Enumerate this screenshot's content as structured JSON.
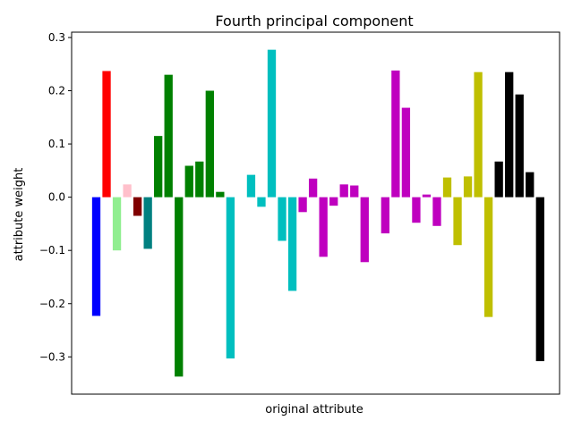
{
  "chart_data": {
    "type": "bar",
    "title": "Fourth principal component",
    "xlabel": "original attribute",
    "ylabel": "attribute weight",
    "ylim": [
      -0.37,
      0.31
    ],
    "yticks": [
      {
        "value": 0.3,
        "label": "0.3"
      },
      {
        "value": 0.2,
        "label": "0.2"
      },
      {
        "value": 0.1,
        "label": "0.1"
      },
      {
        "value": 0.0,
        "label": "0.0"
      },
      {
        "value": -0.1,
        "label": "−0.1"
      },
      {
        "value": -0.2,
        "label": "−0.2"
      },
      {
        "value": -0.3,
        "label": "−0.3"
      }
    ],
    "grid": false,
    "legend": "none",
    "xticks_shown": false,
    "bars": [
      {
        "position": 0,
        "value": -0.223,
        "color": "#0000ff"
      },
      {
        "position": 1,
        "value": 0.237,
        "color": "#ff0000"
      },
      {
        "position": 2,
        "value": -0.1,
        "color": "#90ee90"
      },
      {
        "position": 3,
        "value": 0.024,
        "color": "#ffc0cb"
      },
      {
        "position": 4,
        "value": -0.035,
        "color": "#800000"
      },
      {
        "position": 5,
        "value": -0.097,
        "color": "#008080"
      },
      {
        "position": 6,
        "value": 0.115,
        "color": "#008000"
      },
      {
        "position": 7,
        "value": 0.23,
        "color": "#008000"
      },
      {
        "position": 8,
        "value": -0.337,
        "color": "#008000"
      },
      {
        "position": 9,
        "value": 0.059,
        "color": "#008000"
      },
      {
        "position": 10,
        "value": 0.067,
        "color": "#008000"
      },
      {
        "position": 11,
        "value": 0.2,
        "color": "#008000"
      },
      {
        "position": 12,
        "value": 0.01,
        "color": "#008000"
      },
      {
        "position": 13,
        "value": -0.303,
        "color": "#00bfbf"
      },
      {
        "position": 15,
        "value": 0.042,
        "color": "#00bfbf"
      },
      {
        "position": 16,
        "value": -0.018,
        "color": "#00bfbf"
      },
      {
        "position": 17,
        "value": 0.277,
        "color": "#00bfbf"
      },
      {
        "position": 18,
        "value": -0.082,
        "color": "#00bfbf"
      },
      {
        "position": 19,
        "value": -0.176,
        "color": "#00bfbf"
      },
      {
        "position": 20,
        "value": -0.028,
        "color": "#bf00bf"
      },
      {
        "position": 21,
        "value": 0.035,
        "color": "#bf00bf"
      },
      {
        "position": 22,
        "value": -0.112,
        "color": "#bf00bf"
      },
      {
        "position": 23,
        "value": -0.016,
        "color": "#bf00bf"
      },
      {
        "position": 24,
        "value": 0.024,
        "color": "#bf00bf"
      },
      {
        "position": 25,
        "value": 0.022,
        "color": "#bf00bf"
      },
      {
        "position": 26,
        "value": -0.122,
        "color": "#bf00bf"
      },
      {
        "position": 28,
        "value": -0.068,
        "color": "#bf00bf"
      },
      {
        "position": 29,
        "value": 0.238,
        "color": "#bf00bf"
      },
      {
        "position": 30,
        "value": 0.168,
        "color": "#bf00bf"
      },
      {
        "position": 31,
        "value": -0.048,
        "color": "#bf00bf"
      },
      {
        "position": 32,
        "value": 0.005,
        "color": "#bf00bf"
      },
      {
        "position": 33,
        "value": -0.054,
        "color": "#bf00bf"
      },
      {
        "position": 34,
        "value": 0.037,
        "color": "#bfbf00"
      },
      {
        "position": 35,
        "value": -0.09,
        "color": "#bfbf00"
      },
      {
        "position": 36,
        "value": 0.039,
        "color": "#bfbf00"
      },
      {
        "position": 37,
        "value": 0.235,
        "color": "#bfbf00"
      },
      {
        "position": 38,
        "value": -0.225,
        "color": "#bfbf00"
      },
      {
        "position": 39,
        "value": 0.067,
        "color": "#000000"
      },
      {
        "position": 40,
        "value": 0.235,
        "color": "#000000"
      },
      {
        "position": 41,
        "value": 0.193,
        "color": "#000000"
      },
      {
        "position": 42,
        "value": 0.047,
        "color": "#000000"
      },
      {
        "position": 43,
        "value": -0.308,
        "color": "#000000"
      }
    ]
  }
}
